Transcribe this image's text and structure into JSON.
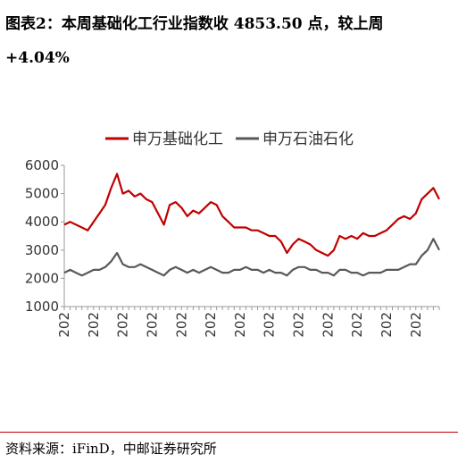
{
  "header": {
    "title": "图表2：本周基础化工行业指数收 4853.50 点，较上周 +4.04%"
  },
  "chart_data": {
    "type": "line",
    "categories": [
      "202",
      null,
      null,
      null,
      null,
      "202",
      null,
      null,
      null,
      null,
      "202",
      null,
      null,
      null,
      null,
      "202",
      null,
      null,
      null,
      null,
      "202",
      null,
      null,
      null,
      null,
      "202",
      null,
      null,
      null,
      null,
      "202",
      null,
      null,
      null,
      null,
      "202",
      null,
      null,
      null,
      null,
      "202",
      null,
      null,
      null,
      null,
      "202",
      null,
      null,
      null,
      null,
      "202",
      null,
      null,
      null,
      null,
      "202",
      null,
      null,
      null,
      null,
      "202",
      null,
      null,
      null,
      null
    ],
    "series": [
      {
        "name": "申万基础化工",
        "color": "#c00000",
        "values": [
          3900,
          4000,
          3900,
          3800,
          3700,
          4000,
          4300,
          4600,
          5200,
          5700,
          5000,
          5100,
          4900,
          5000,
          4800,
          4700,
          4300,
          3900,
          4600,
          4700,
          4500,
          4200,
          4400,
          4300,
          4500,
          4700,
          4600,
          4200,
          4000,
          3800,
          3800,
          3800,
          3700,
          3700,
          3600,
          3500,
          3500,
          3300,
          2900,
          3200,
          3400,
          3300,
          3200,
          3000,
          2900,
          2800,
          3000,
          3500,
          3400,
          3500,
          3400,
          3600,
          3500,
          3500,
          3600,
          3700,
          3900,
          4100,
          4200,
          4100,
          4300,
          4800,
          5000,
          5200,
          4800
        ]
      },
      {
        "name": "申万石油石化",
        "color": "#595959",
        "values": [
          2200,
          2300,
          2200,
          2100,
          2200,
          2300,
          2300,
          2400,
          2600,
          2900,
          2500,
          2400,
          2400,
          2500,
          2400,
          2300,
          2200,
          2100,
          2300,
          2400,
          2300,
          2200,
          2300,
          2200,
          2300,
          2400,
          2300,
          2200,
          2200,
          2300,
          2300,
          2400,
          2300,
          2300,
          2200,
          2300,
          2200,
          2200,
          2100,
          2300,
          2400,
          2400,
          2300,
          2300,
          2200,
          2200,
          2100,
          2300,
          2300,
          2200,
          2200,
          2100,
          2200,
          2200,
          2200,
          2300,
          2300,
          2300,
          2400,
          2500,
          2500,
          2800,
          3000,
          3400,
          3000
        ]
      }
    ],
    "ylim": [
      1000,
      6000
    ],
    "yticks": [
      1000,
      2000,
      3000,
      4000,
      5000,
      6000
    ],
    "grid": false,
    "legend": "top"
  },
  "footer": {
    "source": "资料来源：iFinD，中邮证券研究所"
  }
}
